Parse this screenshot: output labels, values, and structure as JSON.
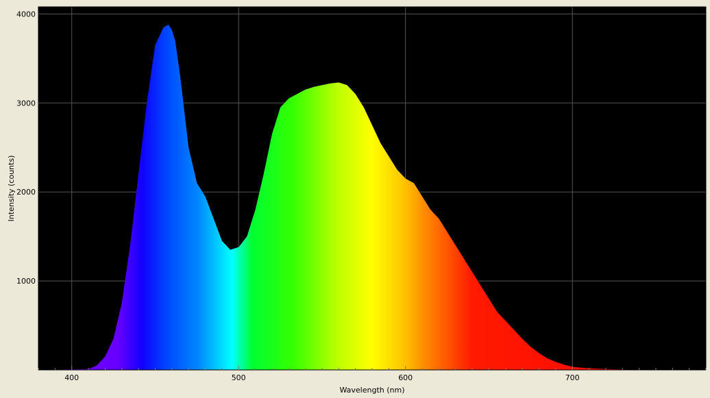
{
  "chart_data": {
    "type": "area",
    "title": "",
    "xlabel": "Wavelength (nm)",
    "ylabel": "Intensity (counts)",
    "xlim": [
      380,
      780
    ],
    "ylim": [
      0,
      4080
    ],
    "x_ticks": [
      400,
      500,
      600,
      700
    ],
    "x_tick_labels": [
      "400",
      "500",
      "600",
      "700"
    ],
    "y_ticks": [
      1000,
      2000,
      3000,
      4000
    ],
    "y_tick_labels": [
      "1000",
      "2000",
      "3000",
      "4000"
    ],
    "grid": true,
    "legend": "none",
    "fill": "visible-spectrum-gradient",
    "background_color": "#000000",
    "grid_color": "#555555",
    "series": [
      {
        "x": [
          410,
          415,
          420,
          425,
          430,
          435,
          440,
          445,
          450,
          455,
          458,
          460,
          462,
          465,
          470,
          475,
          480,
          485,
          490,
          495,
          500,
          505,
          510,
          515,
          520,
          525,
          530,
          535,
          540,
          545,
          550,
          555,
          560,
          565,
          570,
          575,
          580,
          585,
          590,
          595,
          600,
          605,
          610,
          615,
          620,
          625,
          630,
          635,
          640,
          645,
          650,
          655,
          660,
          665,
          670,
          675,
          680,
          685,
          690,
          695,
          700,
          705,
          710,
          720,
          730,
          740,
          750,
          760,
          770
        ],
        "y": [
          10,
          50,
          150,
          350,
          750,
          1400,
          2200,
          3000,
          3650,
          3850,
          3880,
          3820,
          3700,
          3300,
          2500,
          2100,
          1950,
          1700,
          1450,
          1350,
          1380,
          1500,
          1800,
          2200,
          2650,
          2950,
          3050,
          3100,
          3150,
          3180,
          3200,
          3220,
          3230,
          3200,
          3100,
          2950,
          2750,
          2550,
          2400,
          2250,
          2150,
          2100,
          1950,
          1800,
          1700,
          1550,
          1400,
          1250,
          1100,
          950,
          800,
          650,
          550,
          450,
          350,
          260,
          190,
          130,
          90,
          60,
          35,
          25,
          18,
          10,
          5,
          3,
          2,
          1,
          0
        ]
      }
    ]
  }
}
